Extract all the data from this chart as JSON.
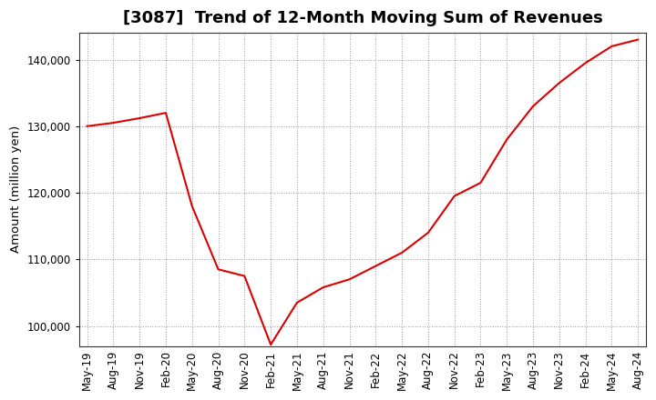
{
  "title": "[3087]  Trend of 12-Month Moving Sum of Revenues",
  "ylabel": "Amount (million yen)",
  "line_color": "#dd0000",
  "background_color": "#ffffff",
  "plot_bg_color": "#ffffff",
  "grid_color": "#999999",
  "ylim": [
    97000,
    144000
  ],
  "yticks": [
    100000,
    110000,
    120000,
    130000,
    140000
  ],
  "values": [
    130000,
    130500,
    131200,
    132000,
    118000,
    108500,
    107500,
    97200,
    103500,
    105800,
    107000,
    109000,
    111000,
    114000,
    119500,
    121500,
    128000,
    133000,
    136500,
    139500,
    142000,
    143000
  ],
  "xtick_labels": [
    "May-19",
    "Aug-19",
    "Nov-19",
    "Feb-20",
    "May-20",
    "Aug-20",
    "Nov-20",
    "Feb-21",
    "May-21",
    "Aug-21",
    "Nov-21",
    "Feb-22",
    "May-22",
    "Aug-22",
    "Nov-22",
    "Feb-23",
    "May-23",
    "Aug-23",
    "Nov-23",
    "Feb-24",
    "May-24",
    "Aug-24"
  ],
  "title_fontsize": 13,
  "tick_fontsize": 8.5,
  "ylabel_fontsize": 9.5
}
